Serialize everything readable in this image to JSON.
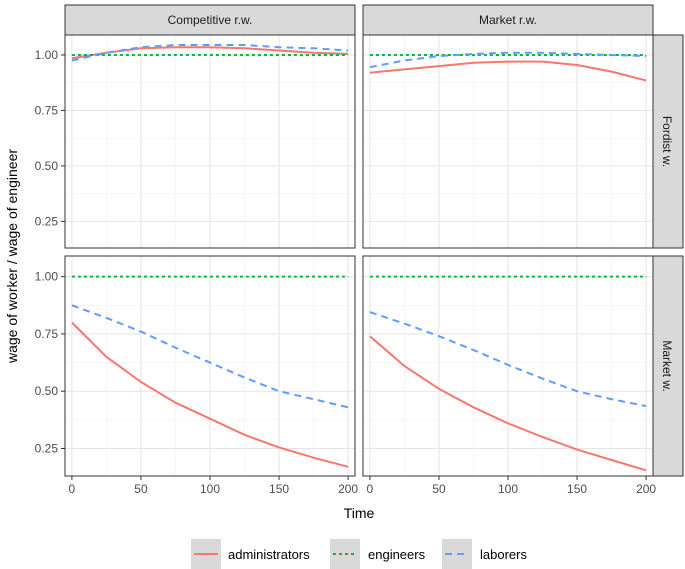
{
  "chart_data": {
    "type": "line",
    "xlabel": "Time",
    "ylabel": "wage of worker / wage of engineer",
    "x_ticks": [
      0,
      50,
      100,
      150,
      200
    ],
    "y_ticks": [
      0.25,
      0.5,
      0.75,
      1.0
    ],
    "y_tick_labels": [
      "0.25",
      "0.50",
      "0.75",
      "1.00"
    ],
    "xlim": [
      -5,
      205
    ],
    "ylim": [
      0.13,
      1.09
    ],
    "grid": true,
    "legend_position": "bottom",
    "columns": [
      "Competitive r.w.",
      "Market r.w."
    ],
    "rows": [
      "Fordist w.",
      "Market w."
    ],
    "legend": [
      {
        "key": "administrators",
        "label": "administrators",
        "color": "#F8766D",
        "dash": "solid"
      },
      {
        "key": "engineers",
        "label": "engineers",
        "color": "#00BA38",
        "dash": "dotted"
      },
      {
        "key": "laborers",
        "label": "laborers",
        "color": "#619CFF",
        "dash": "dashed"
      }
    ],
    "panels": [
      {
        "row": "Fordist w.",
        "col": "Competitive r.w.",
        "series": [
          {
            "name": "administrators",
            "x": [
              0,
              25,
              50,
              75,
              100,
              125,
              150,
              175,
              200
            ],
            "y": [
              0.985,
              1.01,
              1.03,
              1.035,
              1.035,
              1.03,
              1.02,
              1.01,
              1.005
            ]
          },
          {
            "name": "engineers",
            "x": [
              0,
              200
            ],
            "y": [
              1.0,
              1.0
            ]
          },
          {
            "name": "laborers",
            "x": [
              0,
              25,
              50,
              75,
              100,
              125,
              150,
              175,
              200
            ],
            "y": [
              0.975,
              1.01,
              1.035,
              1.045,
              1.045,
              1.045,
              1.035,
              1.03,
              1.02
            ]
          }
        ]
      },
      {
        "row": "Fordist w.",
        "col": "Market r.w.",
        "series": [
          {
            "name": "administrators",
            "x": [
              0,
              25,
              50,
              75,
              100,
              125,
              150,
              175,
              200
            ],
            "y": [
              0.92,
              0.935,
              0.95,
              0.965,
              0.97,
              0.97,
              0.955,
              0.925,
              0.885
            ]
          },
          {
            "name": "engineers",
            "x": [
              0,
              200
            ],
            "y": [
              1.0,
              1.0
            ]
          },
          {
            "name": "laborers",
            "x": [
              0,
              25,
              50,
              75,
              100,
              125,
              150,
              175,
              200
            ],
            "y": [
              0.945,
              0.975,
              0.995,
              1.005,
              1.01,
              1.01,
              1.005,
              1.0,
              0.995
            ]
          }
        ]
      },
      {
        "row": "Market w.",
        "col": "Competitive r.w.",
        "series": [
          {
            "name": "administrators",
            "x": [
              0,
              25,
              50,
              75,
              100,
              125,
              150,
              175,
              200
            ],
            "y": [
              0.8,
              0.65,
              0.54,
              0.45,
              0.38,
              0.31,
              0.255,
              0.21,
              0.17
            ]
          },
          {
            "name": "engineers",
            "x": [
              0,
              200
            ],
            "y": [
              1.0,
              1.0
            ]
          },
          {
            "name": "laborers",
            "x": [
              0,
              25,
              50,
              75,
              100,
              125,
              150,
              175,
              200
            ],
            "y": [
              0.875,
              0.82,
              0.76,
              0.69,
              0.625,
              0.56,
              0.5,
              0.465,
              0.43
            ]
          }
        ]
      },
      {
        "row": "Market w.",
        "col": "Market r.w.",
        "series": [
          {
            "name": "administrators",
            "x": [
              0,
              25,
              50,
              75,
              100,
              125,
              150,
              175,
              200
            ],
            "y": [
              0.74,
              0.61,
              0.51,
              0.43,
              0.36,
              0.3,
              0.245,
              0.2,
              0.155
            ]
          },
          {
            "name": "engineers",
            "x": [
              0,
              200
            ],
            "y": [
              1.0,
              1.0
            ]
          },
          {
            "name": "laborers",
            "x": [
              0,
              25,
              50,
              75,
              100,
              125,
              150,
              175,
              200
            ],
            "y": [
              0.845,
              0.795,
              0.74,
              0.68,
              0.615,
              0.555,
              0.5,
              0.465,
              0.435
            ]
          }
        ]
      }
    ]
  }
}
